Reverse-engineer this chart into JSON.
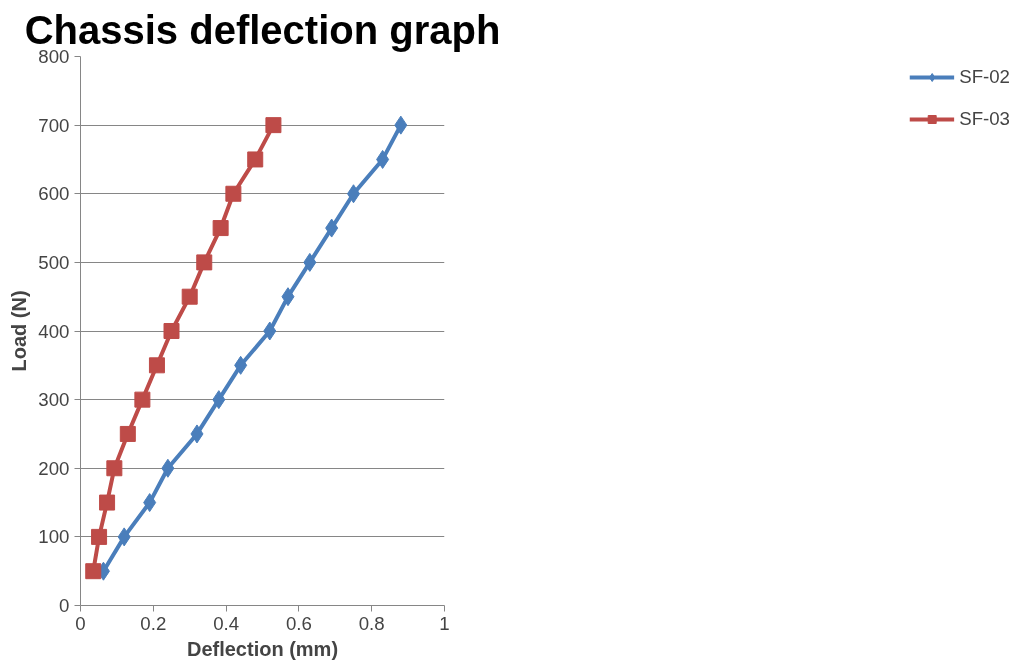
{
  "chart_data": {
    "type": "line",
    "title": "Chassis deflection graph",
    "xlabel": "Deflection (mm)",
    "ylabel": "Load (N)",
    "xlim": [
      0,
      1
    ],
    "xticks": [
      0,
      0.2,
      0.4,
      0.6,
      0.8,
      1
    ],
    "ylim": [
      0,
      800
    ],
    "yticks": [
      0,
      100,
      200,
      300,
      400,
      500,
      600,
      700,
      800
    ],
    "grid": "y",
    "legend": "right",
    "series": [
      {
        "name": "SF-02",
        "color": "#4a7ebb",
        "marker": "diamond",
        "x": [
          0.063,
          0.12,
          0.19,
          0.24,
          0.32,
          0.38,
          0.44,
          0.52,
          0.57,
          0.63,
          0.69,
          0.75,
          0.83,
          0.88
        ],
        "values": [
          50,
          100,
          150,
          200,
          250,
          300,
          350,
          400,
          450,
          500,
          550,
          600,
          650,
          700
        ]
      },
      {
        "name": "SF-03",
        "color": "#be4b48",
        "marker": "square",
        "x": [
          0.035,
          0.051,
          0.073,
          0.093,
          0.13,
          0.17,
          0.21,
          0.25,
          0.3,
          0.34,
          0.385,
          0.42,
          0.48,
          0.53
        ],
        "values": [
          50,
          100,
          150,
          200,
          250,
          300,
          350,
          400,
          450,
          500,
          550,
          600,
          650,
          700
        ]
      }
    ]
  }
}
